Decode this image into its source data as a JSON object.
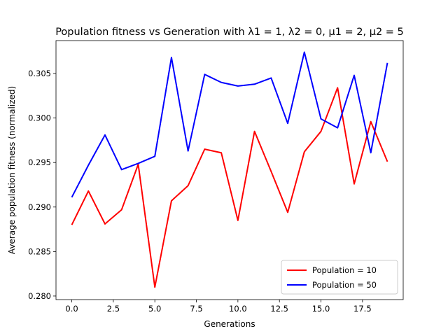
{
  "chart_data": {
    "type": "line",
    "title": "Population fitness vs Generation with λ1 = 1, λ2 = 0, μ1 = 2, μ2 = 5",
    "xlabel": "Generations",
    "ylabel": "Average population fitness (normalized)",
    "x": [
      0,
      1,
      2,
      3,
      4,
      5,
      6,
      7,
      8,
      9,
      10,
      11,
      12,
      13,
      14,
      15,
      16,
      17,
      18,
      19
    ],
    "xlim": [
      -0.95,
      19.95
    ],
    "ylim": [
      0.2796,
      0.3087
    ],
    "xticks": [
      0.0,
      2.5,
      5.0,
      7.5,
      10.0,
      12.5,
      15.0,
      17.5
    ],
    "xtick_labels": [
      "0.0",
      "2.5",
      "5.0",
      "7.5",
      "10.0",
      "12.5",
      "15.0",
      "17.5"
    ],
    "yticks": [
      0.28,
      0.285,
      0.29,
      0.295,
      0.3,
      0.305
    ],
    "ytick_labels": [
      "0.280",
      "0.285",
      "0.290",
      "0.295",
      "0.300",
      "0.305"
    ],
    "grid": false,
    "legend_position": "lower-right",
    "series": [
      {
        "name": "Population = 10",
        "color": "#ff0000",
        "values": [
          0.288,
          0.2918,
          0.2881,
          0.2897,
          0.2948,
          0.281,
          0.2907,
          0.2924,
          0.2965,
          0.2961,
          0.2885,
          0.2985,
          0.294,
          0.2894,
          0.2962,
          0.2985,
          0.3034,
          0.2926,
          0.2996,
          0.2951
        ]
      },
      {
        "name": "Population = 50",
        "color": "#0000ff",
        "values": [
          0.2911,
          0.2947,
          0.2981,
          0.2942,
          0.2949,
          0.2957,
          0.3068,
          0.2963,
          0.3049,
          0.304,
          0.3036,
          0.3038,
          0.3045,
          0.2994,
          0.3074,
          0.2999,
          0.2989,
          0.3048,
          0.2961,
          0.3062
        ]
      }
    ]
  }
}
